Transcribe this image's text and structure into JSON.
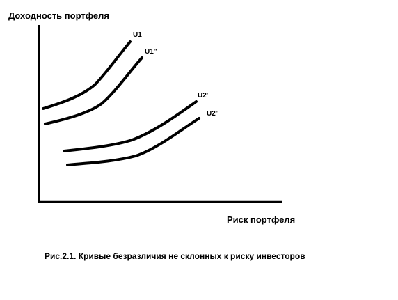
{
  "axis": {
    "y_label": "Доходность портфеля",
    "x_label": "Риск портфеля"
  },
  "curves": [
    {
      "label": "U1"
    },
    {
      "label": "U1''"
    },
    {
      "label": "U2'"
    },
    {
      "label": "U2''"
    }
  ],
  "caption": "Рис.2.1. Кривые безразличия не склонных к риску инвесторов"
}
